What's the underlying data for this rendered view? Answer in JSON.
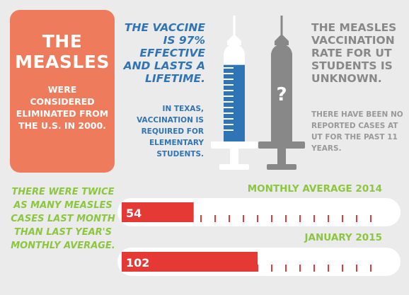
{
  "measles_card": {
    "title_line1": "THE",
    "title_line2": "MEASLES",
    "body": "WERE CONSIDERED ELIMINATED FROM THE U.S. IN 2000."
  },
  "vaccine": {
    "headline": "THE VACCINE IS 97% EFFECTIVE AND LASTS A LIFETIME.",
    "texas_note": "IN TEXAS, VACCINATION IS REQUIRED FOR ELEMENTARY STUDENTS."
  },
  "ut_rate": {
    "headline": "THE MEASLES VACCINATION RATE FOR UT STUDENTS IS UNKNOWN.",
    "note": "THERE HAVE BEEN NO REPORTED CASES AT UT FOR THE PAST 11 YEARS.",
    "unknown_mark": "?"
  },
  "comparison": {
    "text": "THERE WERE TWICE AS MANY MEASLES CASES LAST MONTH THAN LAST YEAR'S MONTHLY AVERAGE."
  },
  "bars": [
    {
      "label": "MONTHLY AVERAGE 2014",
      "value": 54
    },
    {
      "label": "JANUARY 2015",
      "value": 102
    }
  ],
  "bar_scale_max": 206,
  "syringe_fill_fraction": 0.97,
  "colors": {
    "background": "#ebebeb",
    "card": "#ee7b5b",
    "blue": "#2f74b5",
    "gray": "#888888",
    "green": "#8cc63f",
    "red": "#e53935",
    "white": "#ffffff"
  }
}
